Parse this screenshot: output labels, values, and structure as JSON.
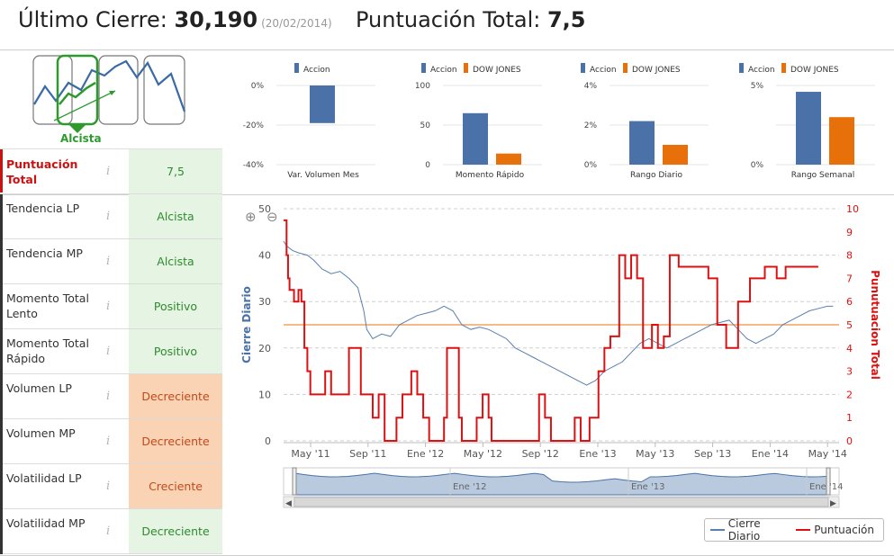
{
  "header": {
    "last_close_label": "Último Cierre:",
    "last_close_value": "30,190",
    "last_close_date": "(20/02/2014)",
    "total_score_label": "Puntuación Total:",
    "total_score_value": "7,5"
  },
  "trend": {
    "label": "Alcista"
  },
  "mini_charts": [
    {
      "title": "Var. Volumen Mes",
      "legend": [
        "Accion"
      ],
      "ticks": [
        "0%",
        "-20%",
        "-40%"
      ],
      "ylim": [
        -40,
        0
      ],
      "values": [
        -19
      ]
    },
    {
      "title": "Momento Rápido",
      "legend": [
        "Accion",
        "DOW JONES"
      ],
      "ticks": [
        "100",
        "50",
        "0"
      ],
      "ylim": [
        0,
        100
      ],
      "values": [
        65,
        14
      ]
    },
    {
      "title": "Rango Diario",
      "legend": [
        "Accion",
        "DOW JONES"
      ],
      "ticks": [
        "4%",
        "2%",
        "0%"
      ],
      "ylim": [
        0,
        4
      ],
      "values": [
        2.2,
        1.0
      ]
    },
    {
      "title": "Rango Semanal",
      "legend": [
        "Accion",
        "DOW JONES"
      ],
      "ticks": [
        "5%",
        "",
        "0%"
      ],
      "ylim": [
        0,
        5
      ],
      "values": [
        4.6,
        3.0
      ]
    }
  ],
  "colors": {
    "accion": "#4a72a8",
    "dow": "#e8700a",
    "score_line": "#dd1111",
    "close_line": "#5a7fae",
    "threshold": "#f4a460"
  },
  "rows": [
    {
      "label": "Puntuación Total",
      "value": "7,5",
      "tone": "green"
    },
    {
      "label": "Tendencia LP",
      "value": "Alcista",
      "tone": "green"
    },
    {
      "label": "Tendencia MP",
      "value": "Alcista",
      "tone": "green"
    },
    {
      "label": "Momento Total Lento",
      "value": "Positivo",
      "tone": "green"
    },
    {
      "label": "Momento Total Rápido",
      "value": "Positivo",
      "tone": "green"
    },
    {
      "label": "Volumen LP",
      "value": "Decreciente",
      "tone": "orange"
    },
    {
      "label": "Volumen MP",
      "value": "Decreciente",
      "tone": "orange"
    },
    {
      "label": "Volatilidad LP",
      "value": "Creciente",
      "tone": "orange"
    },
    {
      "label": "Volatilidad MP",
      "value": "Decreciente",
      "tone": "green"
    }
  ],
  "info_icon": "i",
  "chart_data": {
    "type": "line",
    "ylabel_left": "Cierre Diario",
    "ylabel_right": "Punutuacion Total",
    "left_ticks": [
      "50",
      "40",
      "30",
      "20",
      "10",
      "0"
    ],
    "left_ylim": [
      0,
      50
    ],
    "right_ticks": [
      "10",
      "9",
      "8",
      "7",
      "6",
      "5",
      "4",
      "3",
      "2",
      "1",
      "0"
    ],
    "right_ylim": [
      0,
      10
    ],
    "x_ticks": [
      "May '11",
      "Sep '11",
      "Ene '12",
      "May '12",
      "Sep '12",
      "Ene '13",
      "May '13",
      "Sep '13",
      "Ene '14",
      "May '14"
    ],
    "navigator_ticks": [
      "Ene '12",
      "Ene '13",
      "Ene '14"
    ],
    "threshold": 5,
    "series": [
      {
        "name": "Cierre Diario",
        "axis": "left",
        "points": [
          [
            0,
            43
          ],
          [
            0.1,
            42
          ],
          [
            0.3,
            41
          ],
          [
            0.5,
            40.5
          ],
          [
            0.8,
            40
          ],
          [
            1.0,
            39
          ],
          [
            1.3,
            37
          ],
          [
            1.6,
            36
          ],
          [
            1.9,
            36.5
          ],
          [
            2.2,
            35
          ],
          [
            2.5,
            33
          ],
          [
            2.7,
            28
          ],
          [
            2.8,
            24
          ],
          [
            3.0,
            22
          ],
          [
            3.3,
            23
          ],
          [
            3.6,
            22.5
          ],
          [
            3.9,
            25
          ],
          [
            4.2,
            26
          ],
          [
            4.5,
            27
          ],
          [
            4.8,
            27.5
          ],
          [
            5.1,
            28
          ],
          [
            5.4,
            29
          ],
          [
            5.7,
            28
          ],
          [
            6.0,
            25
          ],
          [
            6.3,
            24
          ],
          [
            6.6,
            24.5
          ],
          [
            6.9,
            24
          ],
          [
            7.2,
            23
          ],
          [
            7.5,
            22
          ],
          [
            7.8,
            20
          ],
          [
            8.1,
            19
          ],
          [
            8.4,
            18
          ],
          [
            8.7,
            17
          ],
          [
            9.0,
            16
          ],
          [
            9.3,
            15
          ],
          [
            9.6,
            14
          ],
          [
            9.9,
            13
          ],
          [
            10.2,
            12
          ],
          [
            10.5,
            13
          ],
          [
            10.8,
            15
          ],
          [
            11.1,
            16
          ],
          [
            11.4,
            17
          ],
          [
            11.7,
            19
          ],
          [
            12.0,
            21
          ],
          [
            12.3,
            22
          ],
          [
            12.6,
            21
          ],
          [
            12.9,
            20
          ],
          [
            13.2,
            21
          ],
          [
            13.5,
            22
          ],
          [
            13.8,
            23
          ],
          [
            14.1,
            24
          ],
          [
            14.4,
            25
          ],
          [
            14.7,
            25.5
          ],
          [
            15.0,
            26
          ],
          [
            15.3,
            24
          ],
          [
            15.6,
            22
          ],
          [
            15.9,
            21
          ],
          [
            16.2,
            22
          ],
          [
            16.5,
            23
          ],
          [
            16.8,
            25
          ],
          [
            17.1,
            26
          ],
          [
            17.4,
            27
          ],
          [
            17.7,
            28
          ],
          [
            18.0,
            28.5
          ],
          [
            18.3,
            29
          ],
          [
            18.5,
            29
          ]
        ]
      },
      {
        "name": "Puntuación",
        "axis": "right",
        "points": [
          [
            0,
            9.5
          ],
          [
            0.1,
            8
          ],
          [
            0.15,
            7
          ],
          [
            0.2,
            6.5
          ],
          [
            0.35,
            6
          ],
          [
            0.5,
            6.5
          ],
          [
            0.6,
            6
          ],
          [
            0.7,
            4
          ],
          [
            0.8,
            3
          ],
          [
            0.9,
            2
          ],
          [
            1.1,
            2
          ],
          [
            1.4,
            3
          ],
          [
            1.6,
            2
          ],
          [
            2.0,
            2
          ],
          [
            2.2,
            4
          ],
          [
            2.5,
            4
          ],
          [
            2.6,
            2
          ],
          [
            2.8,
            2
          ],
          [
            3.0,
            1
          ],
          [
            3.2,
            2
          ],
          [
            3.4,
            0
          ],
          [
            3.6,
            0
          ],
          [
            3.8,
            1
          ],
          [
            4.0,
            2
          ],
          [
            4.3,
            3
          ],
          [
            4.5,
            2
          ],
          [
            4.7,
            1
          ],
          [
            4.9,
            0
          ],
          [
            5.2,
            0
          ],
          [
            5.4,
            1
          ],
          [
            5.5,
            4
          ],
          [
            5.7,
            4
          ],
          [
            5.9,
            1
          ],
          [
            6.0,
            0
          ],
          [
            6.3,
            0
          ],
          [
            6.5,
            1
          ],
          [
            6.7,
            2
          ],
          [
            6.9,
            1
          ],
          [
            7.0,
            0
          ],
          [
            7.5,
            0
          ],
          [
            7.6,
            0
          ],
          [
            8.0,
            0
          ],
          [
            8.3,
            0
          ],
          [
            8.6,
            2
          ],
          [
            8.8,
            1
          ],
          [
            9.0,
            0
          ],
          [
            9.5,
            0
          ],
          [
            9.8,
            1
          ],
          [
            10.0,
            0
          ],
          [
            10.3,
            1
          ],
          [
            10.6,
            3
          ],
          [
            10.8,
            4
          ],
          [
            11.0,
            4.5
          ],
          [
            11.3,
            8
          ],
          [
            11.5,
            7
          ],
          [
            11.7,
            8
          ],
          [
            11.9,
            7
          ],
          [
            12.1,
            4
          ],
          [
            12.4,
            5
          ],
          [
            12.6,
            4
          ],
          [
            12.8,
            4.5
          ],
          [
            13.0,
            8
          ],
          [
            13.3,
            7.5
          ],
          [
            13.6,
            7.5
          ],
          [
            14.0,
            7.5
          ],
          [
            14.3,
            7
          ],
          [
            14.6,
            5
          ],
          [
            14.9,
            4
          ],
          [
            15.1,
            4
          ],
          [
            15.3,
            6
          ],
          [
            15.5,
            6
          ],
          [
            15.7,
            7
          ],
          [
            16.0,
            7
          ],
          [
            16.2,
            7.5
          ],
          [
            16.4,
            7.5
          ],
          [
            16.6,
            7
          ],
          [
            16.9,
            7.5
          ],
          [
            17.2,
            7.5
          ],
          [
            17.5,
            7.5
          ],
          [
            18.0,
            7.5
          ]
        ]
      }
    ]
  },
  "legend": {
    "close": "Cierre Diario",
    "score": "Puntuación"
  }
}
